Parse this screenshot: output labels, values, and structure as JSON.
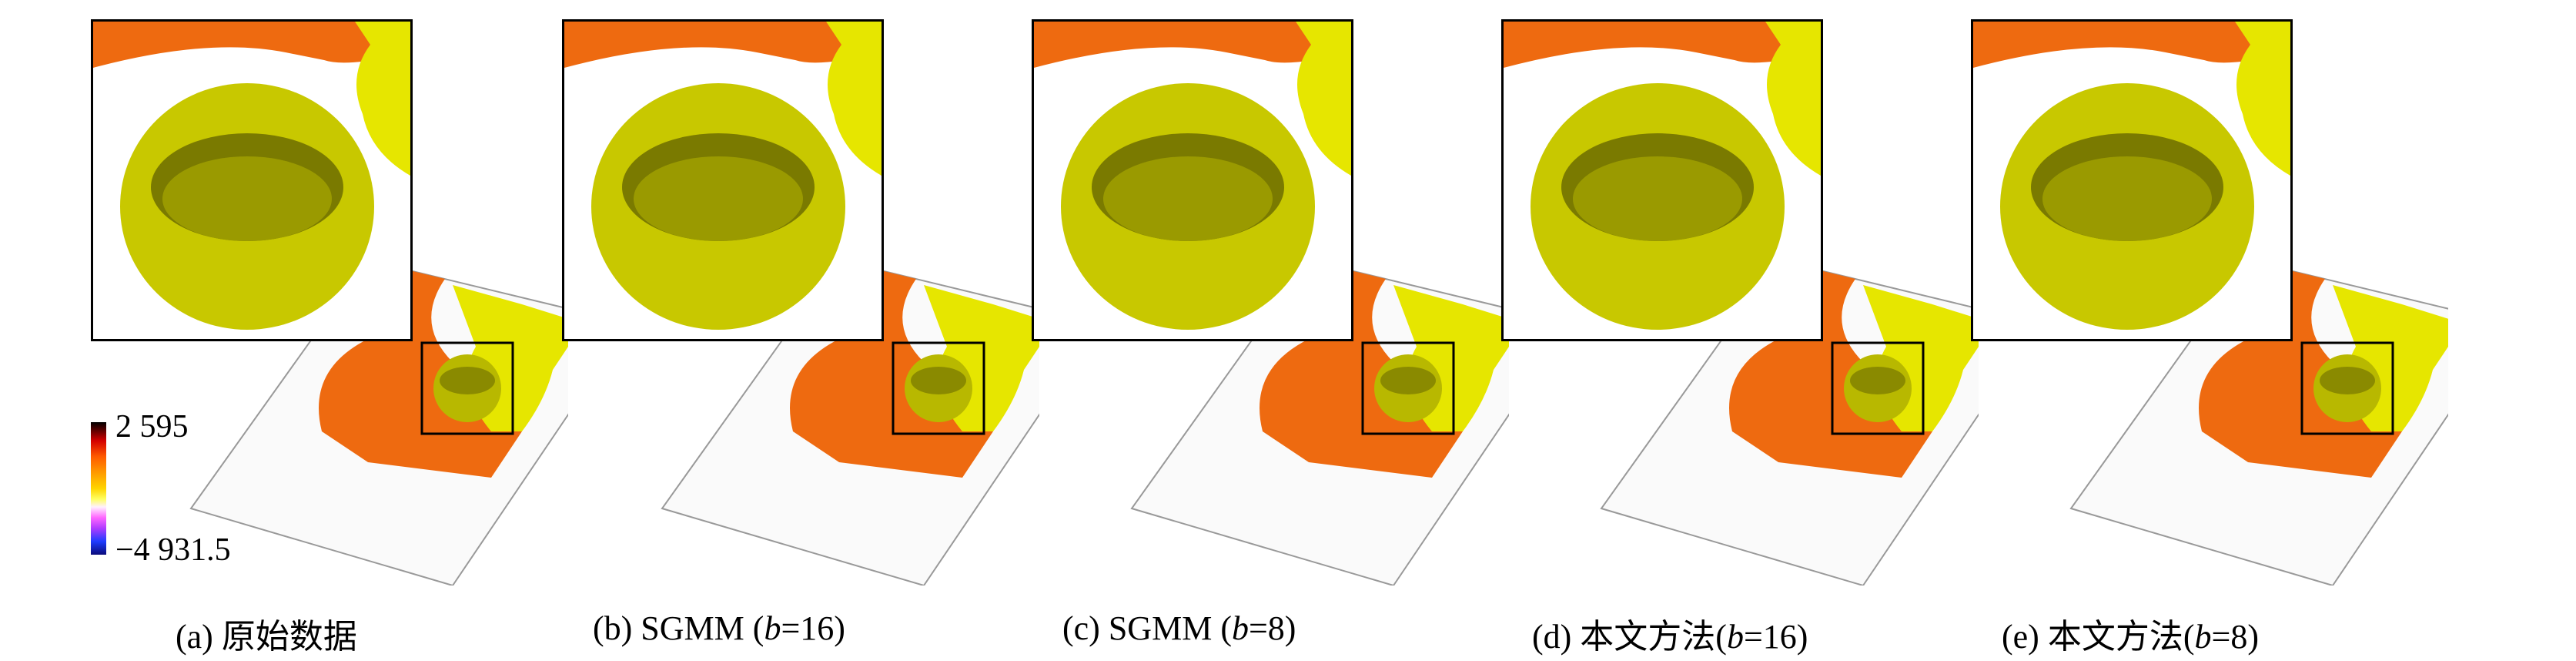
{
  "colorbar": {
    "max_label": "2 595",
    "min_label": "−4 931.5"
  },
  "panels": [
    {
      "id": "a",
      "caption_prefix": "(a)  原始数据",
      "caption_var": "",
      "caption_suffix": ""
    },
    {
      "id": "b",
      "caption_prefix": "(b)  SGMM (",
      "caption_var": "b",
      "caption_suffix": "=16)"
    },
    {
      "id": "c",
      "caption_prefix": "(c)  SGMM (",
      "caption_var": "b",
      "caption_suffix": "=8)"
    },
    {
      "id": "d",
      "caption_prefix": "(d)  本文方法(",
      "caption_var": "b",
      "caption_suffix": "=16)"
    },
    {
      "id": "e",
      "caption_prefix": "(e)  本文方法(",
      "caption_var": "b",
      "caption_suffix": "=8)"
    }
  ],
  "colors": {
    "salt": "#c8c800",
    "salt_dark": "#6e6e00",
    "layer_orange": "#ee6a10",
    "layer_yellow": "#e6e600"
  }
}
